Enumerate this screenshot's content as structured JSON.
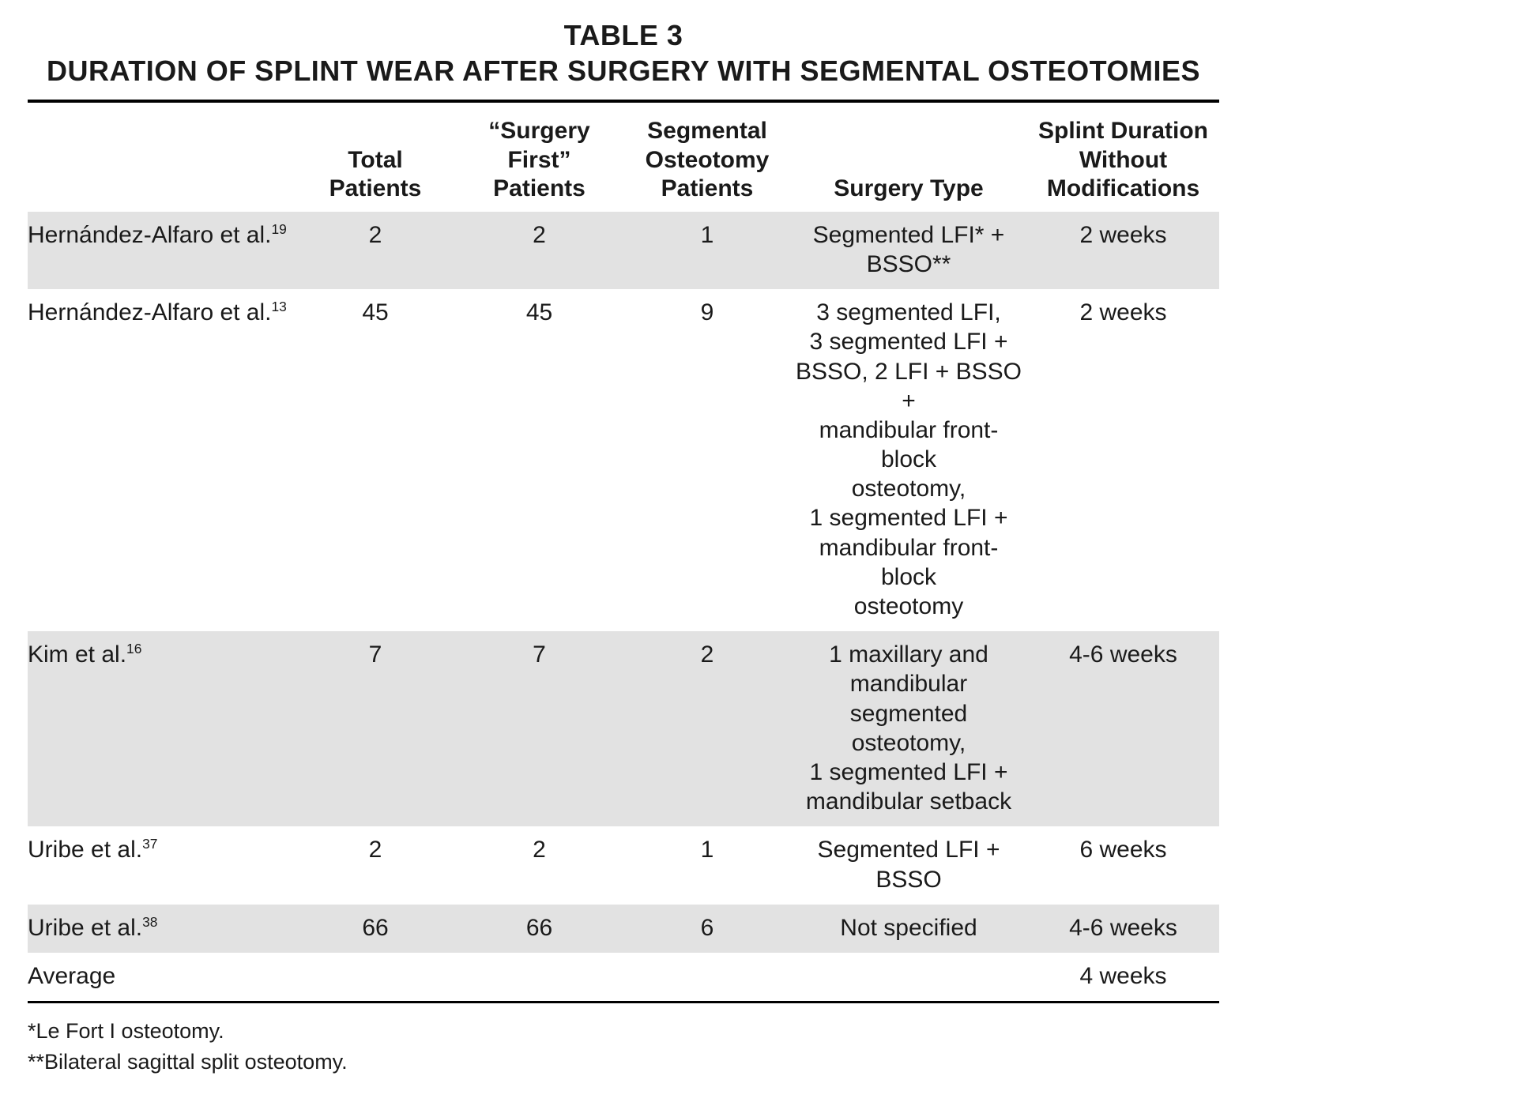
{
  "colors": {
    "row_shade": "#e2e2e2",
    "rule": "#000000",
    "text": "#1a1a1a",
    "background": "#ffffff"
  },
  "title": "TABLE 3",
  "subtitle": "DURATION OF SPLINT WEAR AFTER SURGERY WITH SEGMENTAL OSTEOTOMIES",
  "columns": {
    "study": "",
    "total_patients": "Total Patients",
    "surgery_first_patients": "“Surgery First”\nPatients",
    "segmental_patients": "Segmental\nOsteotomy\nPatients",
    "surgery_type": "Surgery Type",
    "splint_duration": "Splint Duration\nWithout\nModifications"
  },
  "rows": [
    {
      "study": "Hernández-Alfaro et al.",
      "ref": "19",
      "total_patients": "2",
      "surgery_first_patients": "2",
      "segmental_patients": "1",
      "surgery_type": "Segmented LFI* +\nBSSO**",
      "splint_duration": "2 weeks"
    },
    {
      "study": "Hernández-Alfaro et al.",
      "ref": "13",
      "total_patients": "45",
      "surgery_first_patients": "45",
      "segmental_patients": "9",
      "surgery_type": "3 segmented LFI,\n3 segmented LFI +\nBSSO, 2 LFI + BSSO +\nmandibular front-block\nosteotomy,\n1 segmented LFI +\nmandibular front-block\nosteotomy",
      "splint_duration": "2 weeks"
    },
    {
      "study": "Kim et al.",
      "ref": "16",
      "total_patients": "7",
      "surgery_first_patients": "7",
      "segmental_patients": "2",
      "surgery_type": "1 maxillary and\nmandibular segmented\nosteotomy,\n1 segmented LFI +\nmandibular setback",
      "splint_duration": "4-6 weeks"
    },
    {
      "study": "Uribe et al.",
      "ref": "37",
      "total_patients": "2",
      "surgery_first_patients": "2",
      "segmental_patients": "1",
      "surgery_type": "Segmented LFI + BSSO",
      "splint_duration": "6 weeks"
    },
    {
      "study": "Uribe et al.",
      "ref": "38",
      "total_patients": "66",
      "surgery_first_patients": "66",
      "segmental_patients": "6",
      "surgery_type": "Not specified",
      "splint_duration": "4-6 weeks"
    },
    {
      "study": "Average",
      "ref": "",
      "total_patients": "",
      "surgery_first_patients": "",
      "segmental_patients": "",
      "surgery_type": "",
      "splint_duration": "4 weeks"
    }
  ],
  "footnotes": [
    "*Le Fort I osteotomy.",
    "**Bilateral sagittal split osteotomy."
  ]
}
